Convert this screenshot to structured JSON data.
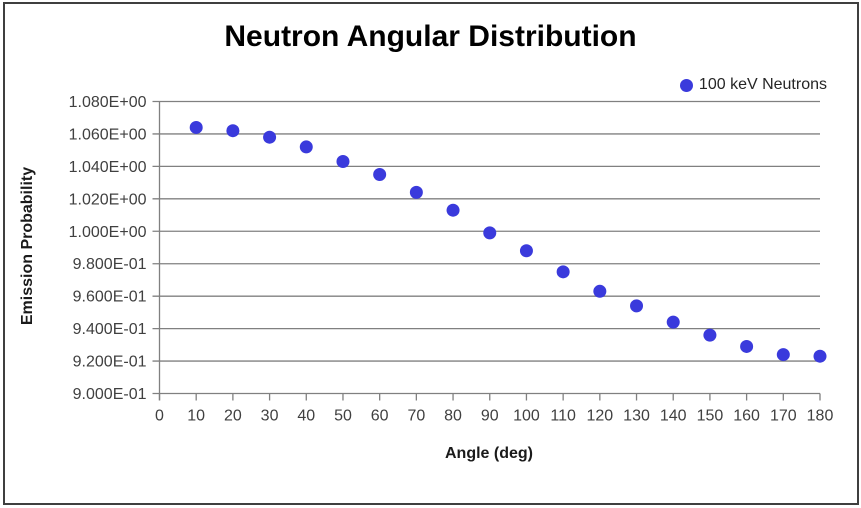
{
  "chart_data": {
    "type": "scatter",
    "title": "Neutron Angular Distribution",
    "xlabel": "Angle (deg)",
    "ylabel": "Emission Probability",
    "x": [
      10,
      20,
      30,
      40,
      50,
      60,
      70,
      80,
      90,
      100,
      110,
      120,
      130,
      140,
      150,
      160,
      170,
      180
    ],
    "series": [
      {
        "name": "100 keV Neutrons",
        "color": "#3a3adc",
        "values": [
          1.064,
          1.062,
          1.058,
          1.052,
          1.043,
          1.035,
          1.024,
          1.013,
          0.999,
          0.988,
          0.975,
          0.963,
          0.954,
          0.944,
          0.936,
          0.929,
          0.924,
          0.923
        ]
      }
    ],
    "xlim": [
      0,
      180
    ],
    "ylim": [
      0.9,
      1.08
    ],
    "x_ticks": [
      0,
      10,
      20,
      30,
      40,
      50,
      60,
      70,
      80,
      90,
      100,
      110,
      120,
      130,
      140,
      150,
      160,
      170,
      180
    ],
    "y_ticks": [
      1.08,
      1.06,
      1.04,
      1.02,
      1.0,
      0.98,
      0.96,
      0.94,
      0.92,
      0.9
    ],
    "y_tick_labels": [
      "1.080E+00",
      "1.060E+00",
      "1.040E+00",
      "1.020E+00",
      "1.000E+00",
      "9.800E-01",
      "9.600E-01",
      "9.400E-01",
      "9.200E-01",
      "9.000E-01"
    ],
    "grid": "horizontal",
    "legend_position": "top-right",
    "colors": {
      "grid": "#808080",
      "axis": "#808080",
      "tick_label": "#404040",
      "title": "#000000",
      "frame_border": "#3f3f3f"
    }
  }
}
